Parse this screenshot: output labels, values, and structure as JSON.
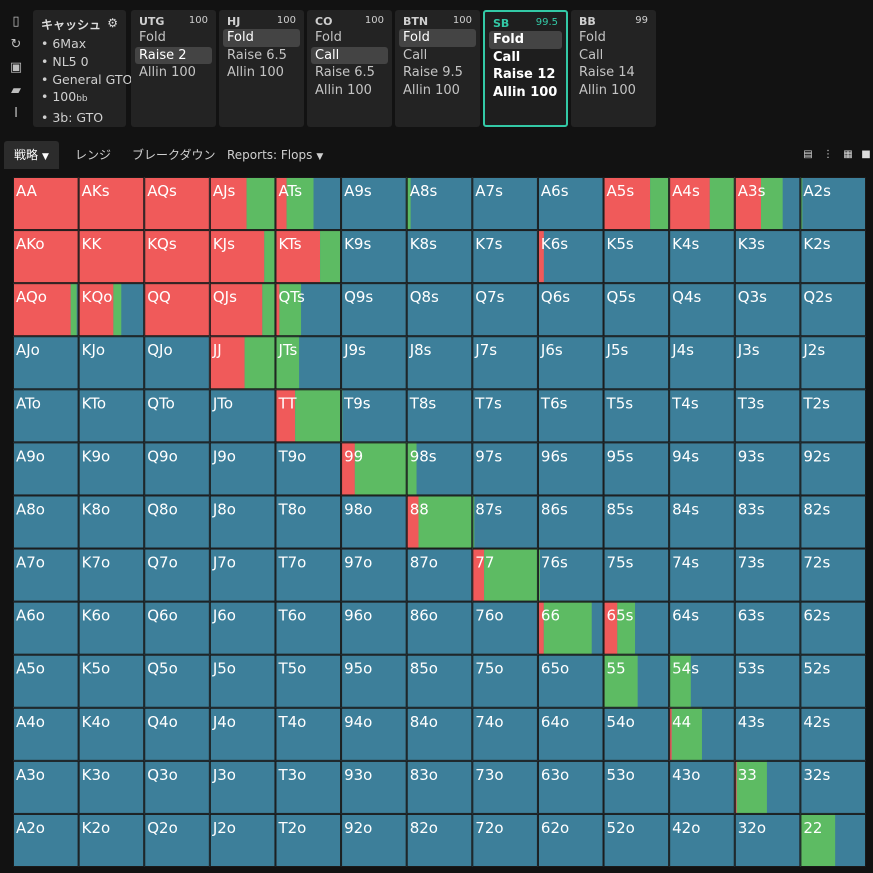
{
  "toolbar": [
    {
      "name": "bookmark-icon",
      "glyph": "▯"
    },
    {
      "name": "refresh-icon",
      "glyph": "↻"
    },
    {
      "name": "save-icon",
      "glyph": "▣"
    },
    {
      "name": "car-icon",
      "glyph": "▰"
    },
    {
      "name": "text-cursor-icon",
      "glyph": "I"
    }
  ],
  "info": {
    "title": "キャッシュ",
    "items": [
      "6Max",
      "NL5 0",
      "General GTO",
      "100",
      "3b: GTO"
    ],
    "bb_suffix": "bb"
  },
  "positions": [
    {
      "name": "UTG",
      "stack": "100",
      "actions": [
        "Fold",
        "Raise 2",
        "Allin 100"
      ],
      "selected": 1
    },
    {
      "name": "HJ",
      "stack": "100",
      "actions": [
        "Fold",
        "Raise 6.5",
        "Allin 100"
      ],
      "selected": 0
    },
    {
      "name": "CO",
      "stack": "100",
      "actions": [
        "Fold",
        "Call",
        "Raise 6.5",
        "Allin 100"
      ],
      "selected": 1
    },
    {
      "name": "BTN",
      "stack": "100",
      "actions": [
        "Fold",
        "Call",
        "Raise 9.5",
        "Allin 100"
      ],
      "selected": 0
    },
    {
      "name": "SB",
      "stack": "99.5",
      "actions": [
        "Fold",
        "Call",
        "Raise 12",
        "Allin 100"
      ],
      "selected": 0,
      "active": true
    },
    {
      "name": "BB",
      "stack": "99",
      "actions": [
        "Fold",
        "Call",
        "Raise 14",
        "Allin 100"
      ],
      "selected": -1
    }
  ],
  "tabs": [
    {
      "label": "戦略",
      "dropdown": true
    },
    {
      "label": "レンジ",
      "dropdown": false
    },
    {
      "label": "ブレークダウン",
      "dropdown": false
    },
    {
      "label": "Reports: Flops",
      "dropdown": true
    }
  ],
  "colors": {
    "raise": "#f05a5a",
    "call": "#5dbb63",
    "fold": "#3d7f9a",
    "accent": "#33c9a6"
  },
  "ranks": [
    "A",
    "K",
    "Q",
    "J",
    "T",
    "9",
    "8",
    "7",
    "6",
    "5",
    "4",
    "3",
    "2"
  ],
  "matrix": {
    "AA": [
      1,
      0
    ],
    "AKs": [
      1,
      0
    ],
    "AQs": [
      1,
      0
    ],
    "AJs": [
      0.56,
      0.44
    ],
    "ATs": [
      0.17,
      0.41
    ],
    "A9s": [
      0,
      0
    ],
    "A8s": [
      0,
      0.06
    ],
    "A5s": [
      0.71,
      0.29
    ],
    "A4s": [
      0.62,
      0.38
    ],
    "A3s": [
      0.4,
      0.33
    ],
    "A2s": [
      0,
      0.03
    ],
    "AKo": [
      1,
      0
    ],
    "KK": [
      1,
      0
    ],
    "KQs": [
      1,
      0
    ],
    "KJs": [
      0.83,
      0.17
    ],
    "KTs": [
      0.68,
      0.32
    ],
    "K6s": [
      0.09,
      0
    ],
    "AQo": [
      0.88,
      0.09
    ],
    "KQo": [
      0.53,
      0.12
    ],
    "QQ": [
      1,
      0
    ],
    "QJs": [
      0.8,
      0.2
    ],
    "QTs": [
      0.06,
      0.33
    ],
    "JJ": [
      0.53,
      0.47
    ],
    "JTs": [
      0,
      0.36
    ],
    "TT": [
      0.3,
      0.7
    ],
    "T9s": [
      0,
      0.02
    ],
    "99": [
      0.21,
      0.79
    ],
    "98s": [
      0,
      0.15
    ],
    "88": [
      0.18,
      0.82
    ],
    "87s": [
      0,
      0.03
    ],
    "77": [
      0.18,
      0.82
    ],
    "76s": [
      0,
      0.03
    ],
    "66": [
      0.09,
      0.73
    ],
    "65s": [
      0.21,
      0.27
    ],
    "55": [
      0,
      0.52
    ],
    "54s": [
      0,
      0.33
    ],
    "44": [
      0.04,
      0.46
    ],
    "33": [
      0.03,
      0.46
    ],
    "22": [
      0,
      0.53
    ]
  }
}
